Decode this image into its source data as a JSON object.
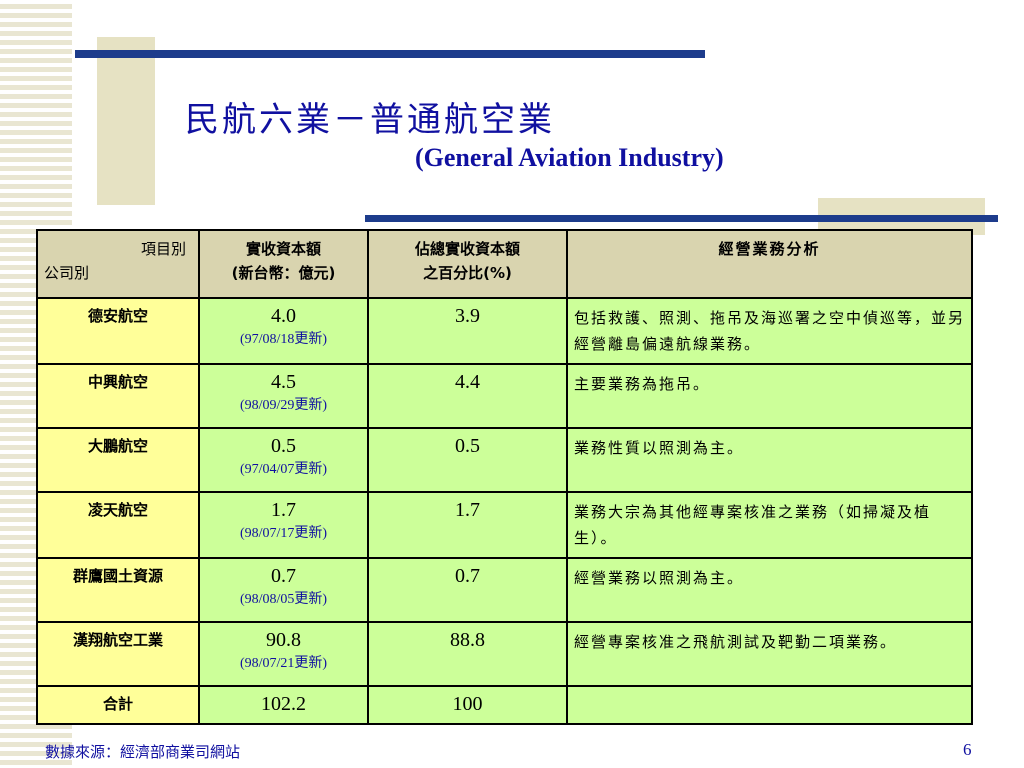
{
  "header": {
    "title": "民航六業－普通航空業",
    "subtitle": "(General Aviation Industry)"
  },
  "table": {
    "corner": {
      "top": "項目別",
      "bottom": "公司別"
    },
    "columns": [
      [
        "實收資本額",
        "(新台幣：億元)"
      ],
      [
        "佔總實收資本額",
        "之百分比(%)"
      ],
      [
        "經營業務分析"
      ]
    ],
    "rows": [
      {
        "company": "德安航空",
        "capital": "4.0",
        "updated": "(97/08/18更新)",
        "share": "3.9",
        "business": "包括救護、照測、拖吊及海巡署之空中偵巡等，並另經營離島偏遠航線業務。"
      },
      {
        "company": "中興航空",
        "capital": "4.5",
        "updated": "(98/09/29更新)",
        "share": "4.4",
        "business": "主要業務為拖吊。"
      },
      {
        "company": "大鵬航空",
        "capital": "0.5",
        "updated": "(97/04/07更新)",
        "share": "0.5",
        "business": "業務性質以照測為主。"
      },
      {
        "company": "凌天航空",
        "capital": "1.7",
        "updated": "(98/07/17更新)",
        "share": "1.7",
        "business": "業務大宗為其他經專案核准之業務（如掃凝及植生）。"
      },
      {
        "company": "群鷹國土資源",
        "capital": "0.7",
        "updated": "(98/08/05更新)",
        "share": "0.7",
        "business": "經營業務以照測為主。"
      },
      {
        "company": "漢翔航空工業",
        "capital": "90.8",
        "updated": "(98/07/21更新)",
        "share": "88.8",
        "business": "經營專案核准之飛航測試及靶勤二項業務。"
      },
      {
        "company": "合計",
        "capital": "102.2",
        "share": "100"
      }
    ]
  },
  "footer": {
    "source": "數據來源：經濟部商業司網站",
    "page": "6"
  }
}
